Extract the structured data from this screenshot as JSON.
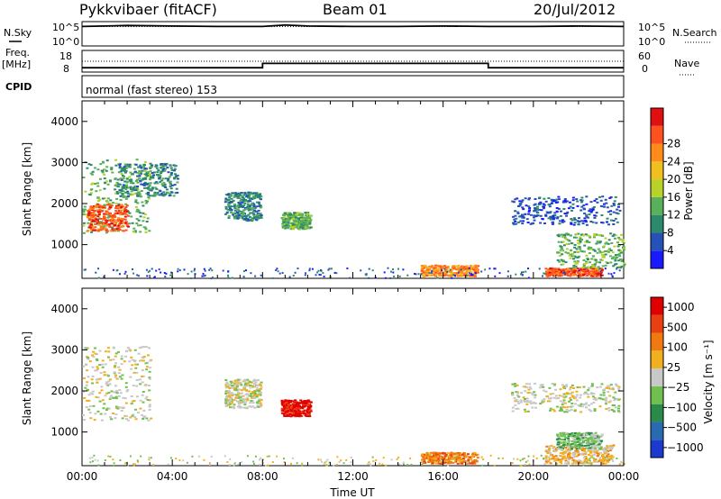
{
  "header": {
    "station": "Pykkvibaer (fitACF)",
    "beam": "Beam 01",
    "date": "20/Jul/2012"
  },
  "left_labels": {
    "nsky": "N.Sky",
    "freq": "Freq.",
    "freq_unit": "[MHz]",
    "cpid": "CPID"
  },
  "right_labels": {
    "nsearch": "N.Search",
    "nave": "Nave"
  },
  "cpid_text": "normal (fast stereo) 153",
  "chart_data": [
    {
      "type": "line",
      "name": "noise",
      "yticks_left": [
        "10^5",
        "10^0"
      ],
      "yticks_right": [
        "10^5",
        "10^0"
      ],
      "series": [
        {
          "name": "N.Sky",
          "x": [
            0,
            2,
            4,
            6,
            8,
            9,
            10,
            12,
            14,
            16,
            18,
            20,
            22,
            24
          ],
          "values": [
            4.0,
            4.2,
            4.1,
            4.0,
            4.0,
            4.3,
            4.1,
            4.0,
            4.0,
            4.1,
            4.0,
            4.0,
            4.1,
            4.0
          ]
        },
        {
          "name": "N.Search",
          "x": [
            0,
            24
          ],
          "values": [
            4.0,
            4.0
          ]
        }
      ]
    },
    {
      "type": "line",
      "name": "frequency",
      "yticks_left": [
        "18",
        "8"
      ],
      "yticks_right": [
        "60",
        "0"
      ],
      "series": [
        {
          "name": "Freq",
          "x": [
            0,
            8,
            8,
            18,
            18,
            24
          ],
          "values": [
            10,
            10,
            12,
            12,
            10,
            10
          ]
        },
        {
          "name": "Nave",
          "x": [
            0,
            24
          ],
          "values": [
            30,
            30
          ]
        }
      ]
    },
    {
      "type": "heatmap",
      "ylabel": "Slant Range [km]",
      "xlim": [
        0,
        24
      ],
      "ylim": [
        180,
        4500
      ],
      "yticks": [
        1000,
        2000,
        3000,
        4000
      ],
      "colorbar": {
        "label": "Power [dB]",
        "ticks": [
          "4",
          "8",
          "12",
          "16",
          "20",
          "24",
          "28"
        ],
        "colors": [
          "#1a1aff",
          "#2652b8",
          "#2b8a6b",
          "#5ab05a",
          "#b8d22a",
          "#f0c020",
          "#ff8c1a",
          "#ff5020",
          "#e01010"
        ]
      },
      "regions": [
        {
          "t": [
            0.0,
            3.0
          ],
          "r": [
            1300,
            3100
          ],
          "level": 3
        },
        {
          "t": [
            0.2,
            2.0
          ],
          "r": [
            1350,
            2000
          ],
          "level": 7
        },
        {
          "t": [
            1.5,
            4.2
          ],
          "r": [
            2200,
            3000
          ],
          "level": 2
        },
        {
          "t": [
            6.3,
            7.9
          ],
          "r": [
            1600,
            2300
          ],
          "level": 2
        },
        {
          "t": [
            8.8,
            10.1
          ],
          "r": [
            1400,
            1800
          ],
          "level": 3
        },
        {
          "t": [
            15.0,
            17.5
          ],
          "r": [
            250,
            520
          ],
          "level": 6
        },
        {
          "t": [
            20.5,
            23.0
          ],
          "r": [
            250,
            450
          ],
          "level": 7
        },
        {
          "t": [
            21.0,
            24.0
          ],
          "r": [
            450,
            1300
          ],
          "level": 3
        },
        {
          "t": [
            19.0,
            23.8
          ],
          "r": [
            1500,
            2200
          ],
          "level": 1
        }
      ]
    },
    {
      "type": "heatmap",
      "ylabel": "Slant Range [km]",
      "xlabel": "Time UT",
      "xlim": [
        0,
        24
      ],
      "ylim": [
        180,
        4500
      ],
      "yticks": [
        1000,
        2000,
        3000,
        4000
      ],
      "xticks": [
        "00:00",
        "04:00",
        "08:00",
        "12:00",
        "16:00",
        "20:00",
        "00:00"
      ],
      "colorbar": {
        "label": "Velocity [m s⁻¹]",
        "ticks": [
          "1000",
          "500",
          "100",
          "25",
          "−25",
          "−100",
          "−500",
          "−1000"
        ],
        "colors": [
          "#1a3ad0",
          "#2a6ab0",
          "#2a8a4a",
          "#70c050",
          "#c8c8c8",
          "#f0b020",
          "#f07a10",
          "#e84010",
          "#e00000"
        ]
      },
      "regions": [
        {
          "t": [
            0.0,
            3.0
          ],
          "r": [
            1300,
            3100
          ],
          "level": 4
        },
        {
          "t": [
            6.3,
            7.9
          ],
          "r": [
            1600,
            2300
          ],
          "level": 4
        },
        {
          "t": [
            8.8,
            10.1
          ],
          "r": [
            1400,
            1800
          ],
          "level": 8
        },
        {
          "t": [
            15.0,
            17.5
          ],
          "r": [
            250,
            520
          ],
          "level": 6
        },
        {
          "t": [
            20.5,
            23.5
          ],
          "r": [
            250,
            700
          ],
          "level": 5
        },
        {
          "t": [
            19.0,
            23.8
          ],
          "r": [
            1500,
            2200
          ],
          "level": 4
        },
        {
          "t": [
            21.0,
            23.0
          ],
          "r": [
            600,
            1000
          ],
          "level": 3
        }
      ]
    }
  ]
}
